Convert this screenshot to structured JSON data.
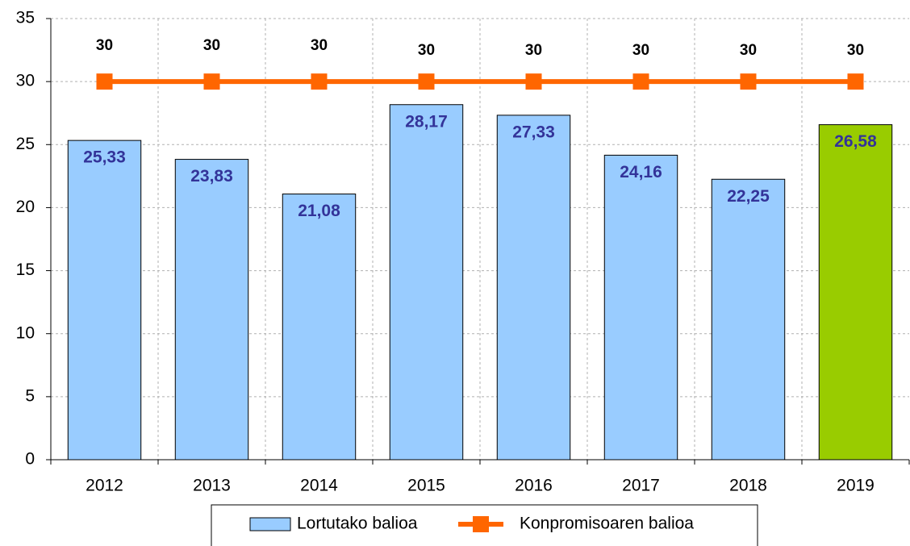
{
  "chart_data": {
    "type": "bar",
    "categories": [
      "2012",
      "2013",
      "2014",
      "2015",
      "2016",
      "2017",
      "2018",
      "2019"
    ],
    "series": [
      {
        "name": "Lortutako balioa",
        "type": "bar",
        "color": "#99ccff",
        "colors": [
          "#99ccff",
          "#99ccff",
          "#99ccff",
          "#99ccff",
          "#99ccff",
          "#99ccff",
          "#99ccff",
          "#99cc00"
        ],
        "values": [
          25.33,
          23.83,
          21.08,
          28.17,
          27.33,
          24.16,
          22.25,
          26.58
        ],
        "value_labels": [
          "25,33",
          "23,83",
          "21,08",
          "28,17",
          "27,33",
          "24,16",
          "22,25",
          "26,58"
        ]
      },
      {
        "name": "Konpromisoaren balioa",
        "type": "line",
        "color": "#ff6600",
        "values": [
          30,
          30,
          30,
          30,
          30,
          30,
          30,
          30
        ]
      }
    ],
    "ylim": [
      0,
      35
    ],
    "yticks": [
      0,
      5,
      10,
      15,
      20,
      25,
      30,
      35
    ],
    "grid": true,
    "legend": "bottom"
  }
}
